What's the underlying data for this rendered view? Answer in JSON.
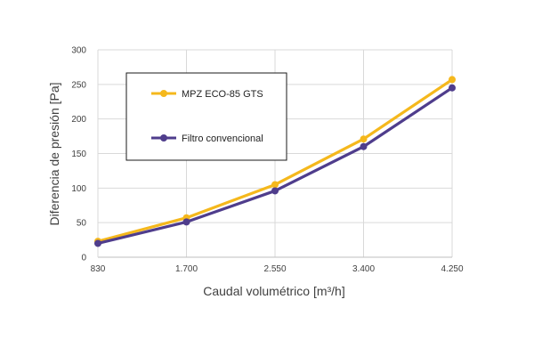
{
  "chart_data": {
    "type": "line",
    "xlabel": "Caudal volumétrico [m³/h]",
    "ylabel": "Diferencia de presión [Pa]",
    "categories": [
      "830",
      "1.700",
      "2.550",
      "3.400",
      "4.250"
    ],
    "yticks": [
      "0",
      "50",
      "100",
      "150",
      "200",
      "250",
      "300"
    ],
    "ylim": [
      0,
      300
    ],
    "grid": true,
    "legend_position": "top-left",
    "series": [
      {
        "name": "MPZ ECO-85 GTS",
        "color": "#F5B81C",
        "values": [
          23,
          57,
          105,
          171,
          257
        ]
      },
      {
        "name": "Filtro convencional",
        "color": "#4F3D8C",
        "values": [
          20,
          51,
          96,
          160,
          245
        ]
      }
    ]
  }
}
